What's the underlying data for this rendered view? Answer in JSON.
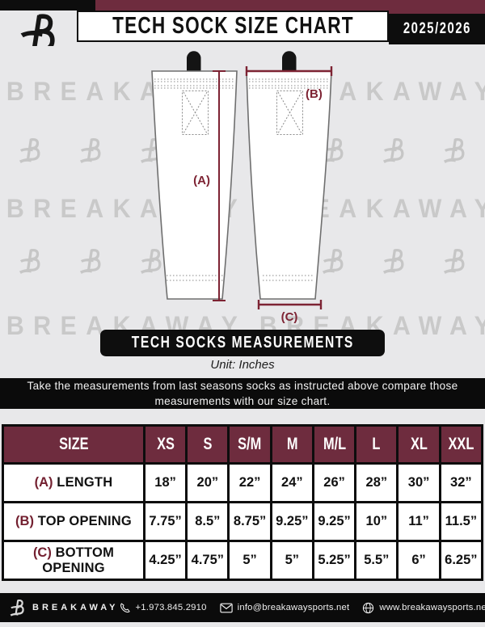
{
  "header": {
    "title": "TECH SOCK SIZE CHART",
    "season": "2025/2026"
  },
  "watermark": {
    "word": "BREAKAWAY"
  },
  "diagram": {
    "label_a": "(A)",
    "label_b": "(B)",
    "label_c": "(C)"
  },
  "banner": {
    "text": "TECH SOCKS MEASUREMENTS"
  },
  "unit": {
    "text": "Unit: Inches"
  },
  "instruction": {
    "text": "Take the measurements from last seasons socks as instructed above compare those measurements  with our size chart."
  },
  "table": {
    "columns": [
      "SIZE",
      "XS",
      "S",
      "S/M",
      "M",
      "M/L",
      "L",
      "XL",
      "XXL"
    ],
    "rows": [
      {
        "prefix": "(A)",
        "label": "LENGTH",
        "values": [
          "18”",
          "20”",
          "22”",
          "24”",
          "26”",
          "28”",
          "30”",
          "32”"
        ]
      },
      {
        "prefix": "(B)",
        "label": "TOP OPENING",
        "values": [
          "7.75”",
          "8.5”",
          "8.75”",
          "9.25”",
          "9.25”",
          "10”",
          "11”",
          "11.5”"
        ]
      },
      {
        "prefix": "(C)",
        "label": "BOTTOM OPENING",
        "values": [
          "4.25”",
          "4.75”",
          "5”",
          "5”",
          "5.25”",
          "5.5”",
          "6”",
          "6.25”"
        ]
      }
    ]
  },
  "footer": {
    "brand": "BREAKAWAY",
    "phone": "+1.973.845.2910",
    "email": "info@breakawaysports.net",
    "website": "www.breakawaysports.net"
  },
  "colors": {
    "maroon": "#6e2c3e",
    "measure_line": "#7d2333",
    "background": "#e8e8ea",
    "watermark_gray": "#c9c9c9",
    "black": "#0d0d0d"
  }
}
